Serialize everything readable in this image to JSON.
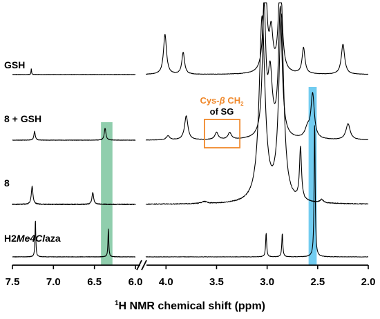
{
  "chart_data": {
    "type": "line",
    "title": "",
    "xlabel_sup": "1",
    "xlabel_rest": "H NMR chemical shift (ppm)",
    "x_axis_break": [
      6.0,
      4.2
    ],
    "xlim_left": [
      7.5,
      6.0
    ],
    "xlim_right": [
      4.2,
      2.0
    ],
    "x_ticks": [
      {
        "value": 7.5,
        "label": "7.5"
      },
      {
        "value": 7.0,
        "label": "7.0"
      },
      {
        "value": 6.5,
        "label": "6.5"
      },
      {
        "value": 6.0,
        "label": "6.0"
      },
      {
        "value": 4.0,
        "label": "4.0"
      },
      {
        "value": 3.5,
        "label": "3.5"
      },
      {
        "value": 3.0,
        "label": "3.0"
      },
      {
        "value": 2.5,
        "label": "2.5"
      },
      {
        "value": 2.0,
        "label": "2.0"
      }
    ],
    "series": [
      {
        "name": "GSH",
        "peaks": [
          {
            "ppm": 7.27,
            "height": 0.15,
            "width": 0.004
          },
          {
            "ppm": 4.01,
            "height": 1.0,
            "width": 0.018
          },
          {
            "ppm": 3.83,
            "height": 0.55,
            "width": 0.016
          },
          {
            "ppm": 3.02,
            "height": 2.6,
            "width": 0.02
          },
          {
            "ppm": 2.96,
            "height": 0.95,
            "width": 0.02
          },
          {
            "ppm": 2.87,
            "height": 2.6,
            "width": 0.02
          },
          {
            "ppm": 2.64,
            "height": 0.65,
            "width": 0.017
          },
          {
            "ppm": 2.25,
            "height": 0.75,
            "width": 0.02
          }
        ]
      },
      {
        "name": "8 + GSH",
        "peaks": [
          {
            "ppm": 7.23,
            "height": 0.22,
            "width": 0.01
          },
          {
            "ppm": 6.37,
            "height": 0.3,
            "width": 0.012
          },
          {
            "ppm": 3.98,
            "height": 0.1,
            "width": 0.02
          },
          {
            "ppm": 3.8,
            "height": 0.6,
            "width": 0.02
          },
          {
            "ppm": 3.5,
            "height": 0.18,
            "width": 0.02
          },
          {
            "ppm": 3.37,
            "height": 0.17,
            "width": 0.02
          },
          {
            "ppm": 3.03,
            "height": 3.2,
            "width": 0.02
          },
          {
            "ppm": 2.97,
            "height": 1.5,
            "width": 0.025
          },
          {
            "ppm": 2.87,
            "height": 3.2,
            "width": 0.022
          },
          {
            "ppm": 2.6,
            "height": 0.25,
            "width": 0.03
          },
          {
            "ppm": 2.55,
            "height": 1.1,
            "width": 0.02
          },
          {
            "ppm": 2.2,
            "height": 0.4,
            "width": 0.025
          }
        ]
      },
      {
        "name": "8",
        "peaks": [
          {
            "ppm": 7.26,
            "height": 0.45,
            "width": 0.012
          },
          {
            "ppm": 6.52,
            "height": 0.3,
            "width": 0.012
          },
          {
            "ppm": 3.62,
            "height": 0.05,
            "width": 0.03
          },
          {
            "ppm": 3.05,
            "height": 4.6,
            "width": 0.035
          },
          {
            "ppm": 2.86,
            "height": 4.6,
            "width": 0.03
          },
          {
            "ppm": 2.67,
            "height": 1.3,
            "width": 0.012
          },
          {
            "ppm": 2.46,
            "height": 0.08,
            "width": 0.02
          }
        ]
      },
      {
        "name_plain": "H2",
        "name_italic": "Me4Cl",
        "name_tail": "aza",
        "peaks": [
          {
            "ppm": 7.22,
            "height": 0.9,
            "width": 0.006
          },
          {
            "ppm": 6.33,
            "height": 0.7,
            "width": 0.006
          },
          {
            "ppm": 3.01,
            "height": 0.6,
            "width": 0.006
          },
          {
            "ppm": 2.85,
            "height": 0.6,
            "width": 0.006
          },
          {
            "ppm": 2.53,
            "height": 3.4,
            "width": 0.006
          }
        ]
      }
    ],
    "highlights": [
      {
        "from": 6.42,
        "to": 6.28,
        "color": "#84c9a4"
      },
      {
        "from": 2.59,
        "to": 2.51,
        "color": "#63c6ee"
      }
    ],
    "annotation": {
      "line1_prefix": "Cys-",
      "line1_beta": "β",
      "line1_suffix": " CH",
      "line1_sub": "2",
      "line2": "of SG",
      "color": "#f0882a",
      "box_ppm": [
        3.62,
        3.27
      ]
    }
  }
}
